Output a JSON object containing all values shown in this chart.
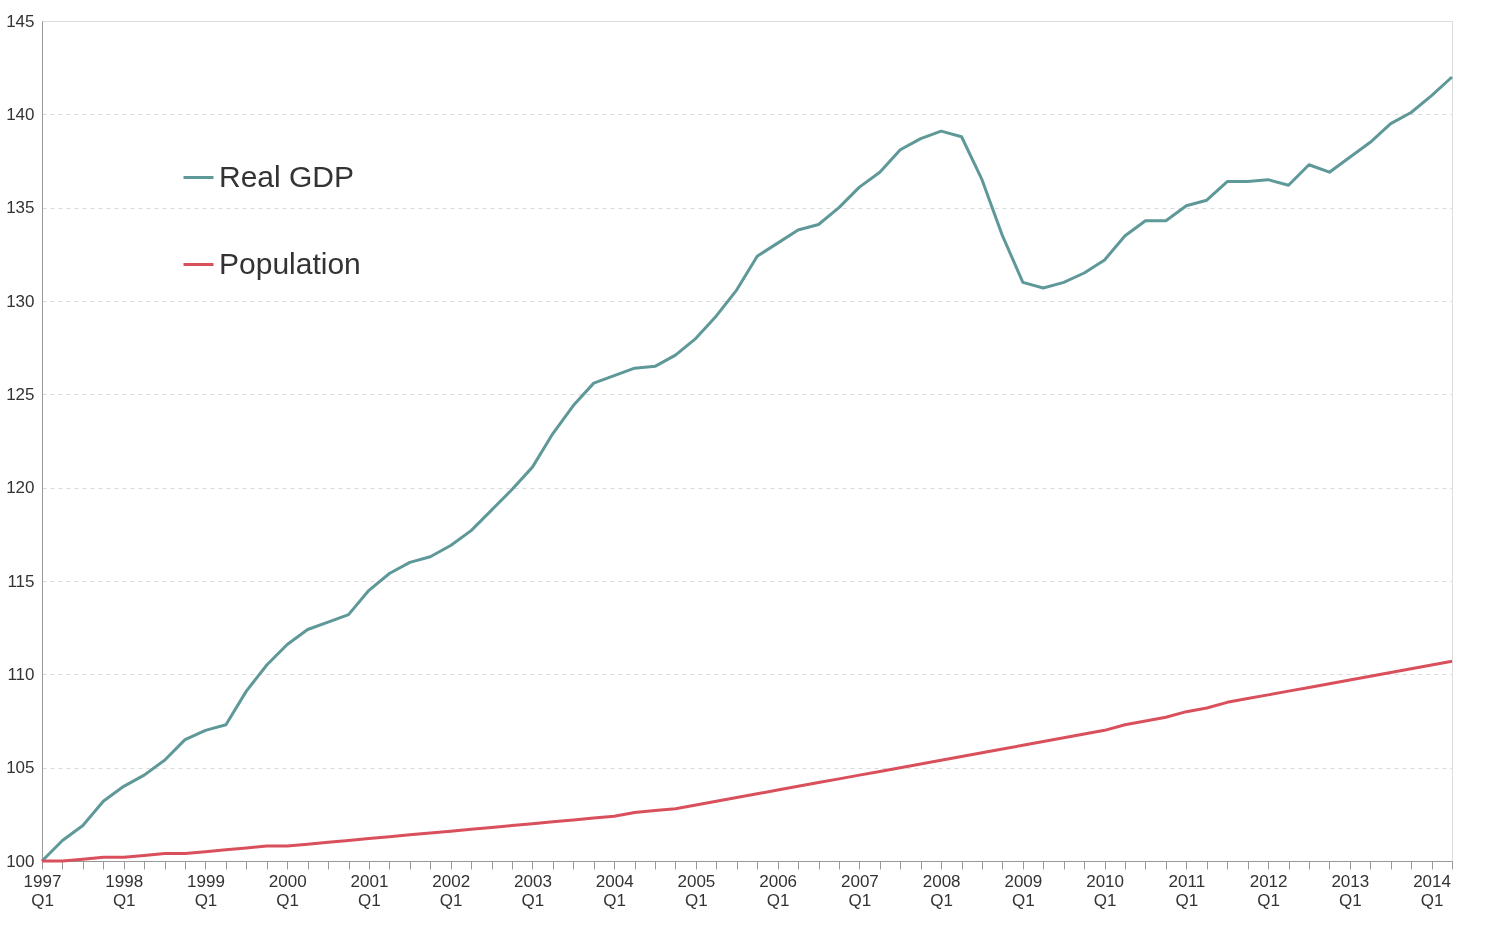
{
  "chart_data": {
    "type": "line",
    "categories": [
      "1997\nQ1",
      null,
      null,
      null,
      "1998\nQ1",
      null,
      null,
      null,
      "1999\nQ1",
      null,
      null,
      null,
      "2000\nQ1",
      null,
      null,
      null,
      "2001\nQ1",
      null,
      null,
      null,
      "2002\nQ1",
      null,
      null,
      null,
      "2003\nQ1",
      null,
      null,
      null,
      "2004\nQ1",
      null,
      null,
      null,
      "2005\nQ1",
      null,
      null,
      null,
      "2006\nQ1",
      null,
      null,
      null,
      "2007\nQ1",
      null,
      null,
      null,
      "2008\nQ1",
      null,
      null,
      null,
      "2009\nQ1",
      null,
      null,
      null,
      "2010\nQ1",
      null,
      null,
      null,
      "2011\nQ1",
      null,
      null,
      null,
      "2012\nQ1",
      null,
      null,
      null,
      "2013\nQ1",
      null,
      null,
      null,
      "2014\nQ1",
      null
    ],
    "series": [
      {
        "name": "Real GDP",
        "color": "#5f9898",
        "values": [
          100.0,
          101.1,
          101.9,
          103.2,
          104.0,
          104.6,
          105.4,
          106.5,
          107.0,
          107.3,
          109.1,
          110.5,
          111.6,
          112.4,
          112.8,
          113.2,
          114.5,
          115.4,
          116.0,
          116.3,
          116.9,
          117.7,
          118.8,
          119.9,
          121.1,
          122.9,
          124.4,
          125.6,
          126.0,
          126.4,
          126.5,
          127.1,
          128.0,
          129.2,
          130.6,
          132.4,
          133.1,
          133.8,
          134.1,
          135.0,
          136.1,
          136.9,
          138.1,
          138.7,
          139.1,
          138.8,
          136.5,
          133.5,
          131.0,
          130.7,
          131.0,
          131.5,
          132.2,
          133.5,
          134.3,
          134.3,
          135.1,
          135.4,
          136.4,
          136.4,
          136.5,
          136.2,
          137.3,
          136.9,
          137.7,
          138.5,
          139.5,
          140.1,
          141.0,
          142.0
        ]
      },
      {
        "name": "Population",
        "color": "#d9505c",
        "values": [
          100.0,
          100.0,
          100.1,
          100.2,
          100.2,
          100.3,
          100.4,
          100.4,
          100.5,
          100.6,
          100.7,
          100.8,
          100.8,
          100.9,
          101.0,
          101.1,
          101.2,
          101.3,
          101.4,
          101.5,
          101.6,
          101.7,
          101.8,
          101.9,
          102.0,
          102.1,
          102.2,
          102.3,
          102.4,
          102.6,
          102.7,
          102.8,
          103.0,
          103.2,
          103.4,
          103.6,
          103.8,
          104.0,
          104.2,
          104.4,
          104.6,
          104.8,
          105.0,
          105.2,
          105.4,
          105.6,
          105.8,
          106.0,
          106.2,
          106.4,
          106.6,
          106.8,
          107.0,
          107.3,
          107.5,
          107.7,
          108.0,
          108.2,
          108.5,
          108.7,
          108.9,
          109.1,
          109.3,
          109.5,
          109.7,
          109.9,
          110.1,
          110.3,
          110.5,
          110.7
        ]
      }
    ],
    "ylim": [
      100,
      145
    ],
    "yticks": [
      100,
      105,
      110,
      115,
      120,
      125,
      130,
      135,
      140,
      145
    ],
    "grid": "y",
    "legend": "top left",
    "marker": "none",
    "line_style": "solid"
  }
}
